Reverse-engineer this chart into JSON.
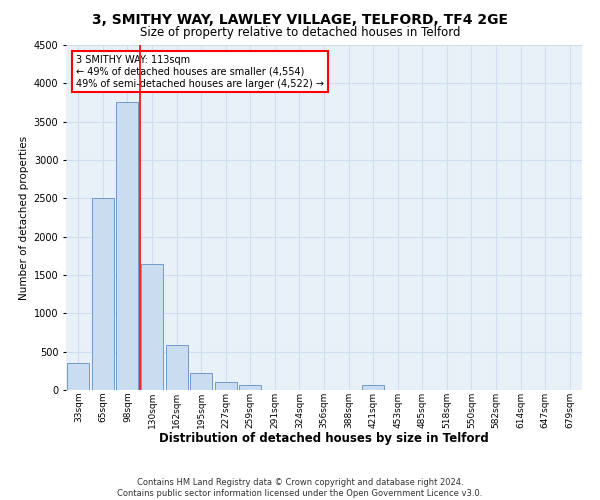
{
  "title_line1": "3, SMITHY WAY, LAWLEY VILLAGE, TELFORD, TF4 2GE",
  "title_line2": "Size of property relative to detached houses in Telford",
  "xlabel": "Distribution of detached houses by size in Telford",
  "ylabel": "Number of detached properties",
  "categories": [
    "33sqm",
    "65sqm",
    "98sqm",
    "130sqm",
    "162sqm",
    "195sqm",
    "227sqm",
    "259sqm",
    "291sqm",
    "324sqm",
    "356sqm",
    "388sqm",
    "421sqm",
    "453sqm",
    "485sqm",
    "518sqm",
    "550sqm",
    "582sqm",
    "614sqm",
    "647sqm",
    "679sqm"
  ],
  "values": [
    350,
    2500,
    3750,
    1650,
    590,
    220,
    110,
    60,
    0,
    0,
    0,
    0,
    60,
    0,
    0,
    0,
    0,
    0,
    0,
    0,
    0
  ],
  "bar_color": "#c9dcf0",
  "bar_edge_color": "#6090c0",
  "red_line_x": 2.5,
  "annotation_text": "3 SMITHY WAY: 113sqm\n← 49% of detached houses are smaller (4,554)\n49% of semi-detached houses are larger (4,522) →",
  "annotation_box_color": "white",
  "annotation_box_edge": "red",
  "ylim": [
    0,
    4500
  ],
  "yticks": [
    0,
    500,
    1000,
    1500,
    2000,
    2500,
    3000,
    3500,
    4000,
    4500
  ],
  "footer_line1": "Contains HM Land Registry data © Crown copyright and database right 2024.",
  "footer_line2": "Contains public sector information licensed under the Open Government Licence v3.0.",
  "grid_color": "#d0dff0",
  "background_color": "#e8f0f8",
  "title1_fontsize": 10,
  "title2_fontsize": 8.5,
  "ylabel_fontsize": 7.5,
  "xlabel_fontsize": 8.5,
  "tick_fontsize": 6.5,
  "annot_fontsize": 7,
  "footer_fontsize": 6
}
